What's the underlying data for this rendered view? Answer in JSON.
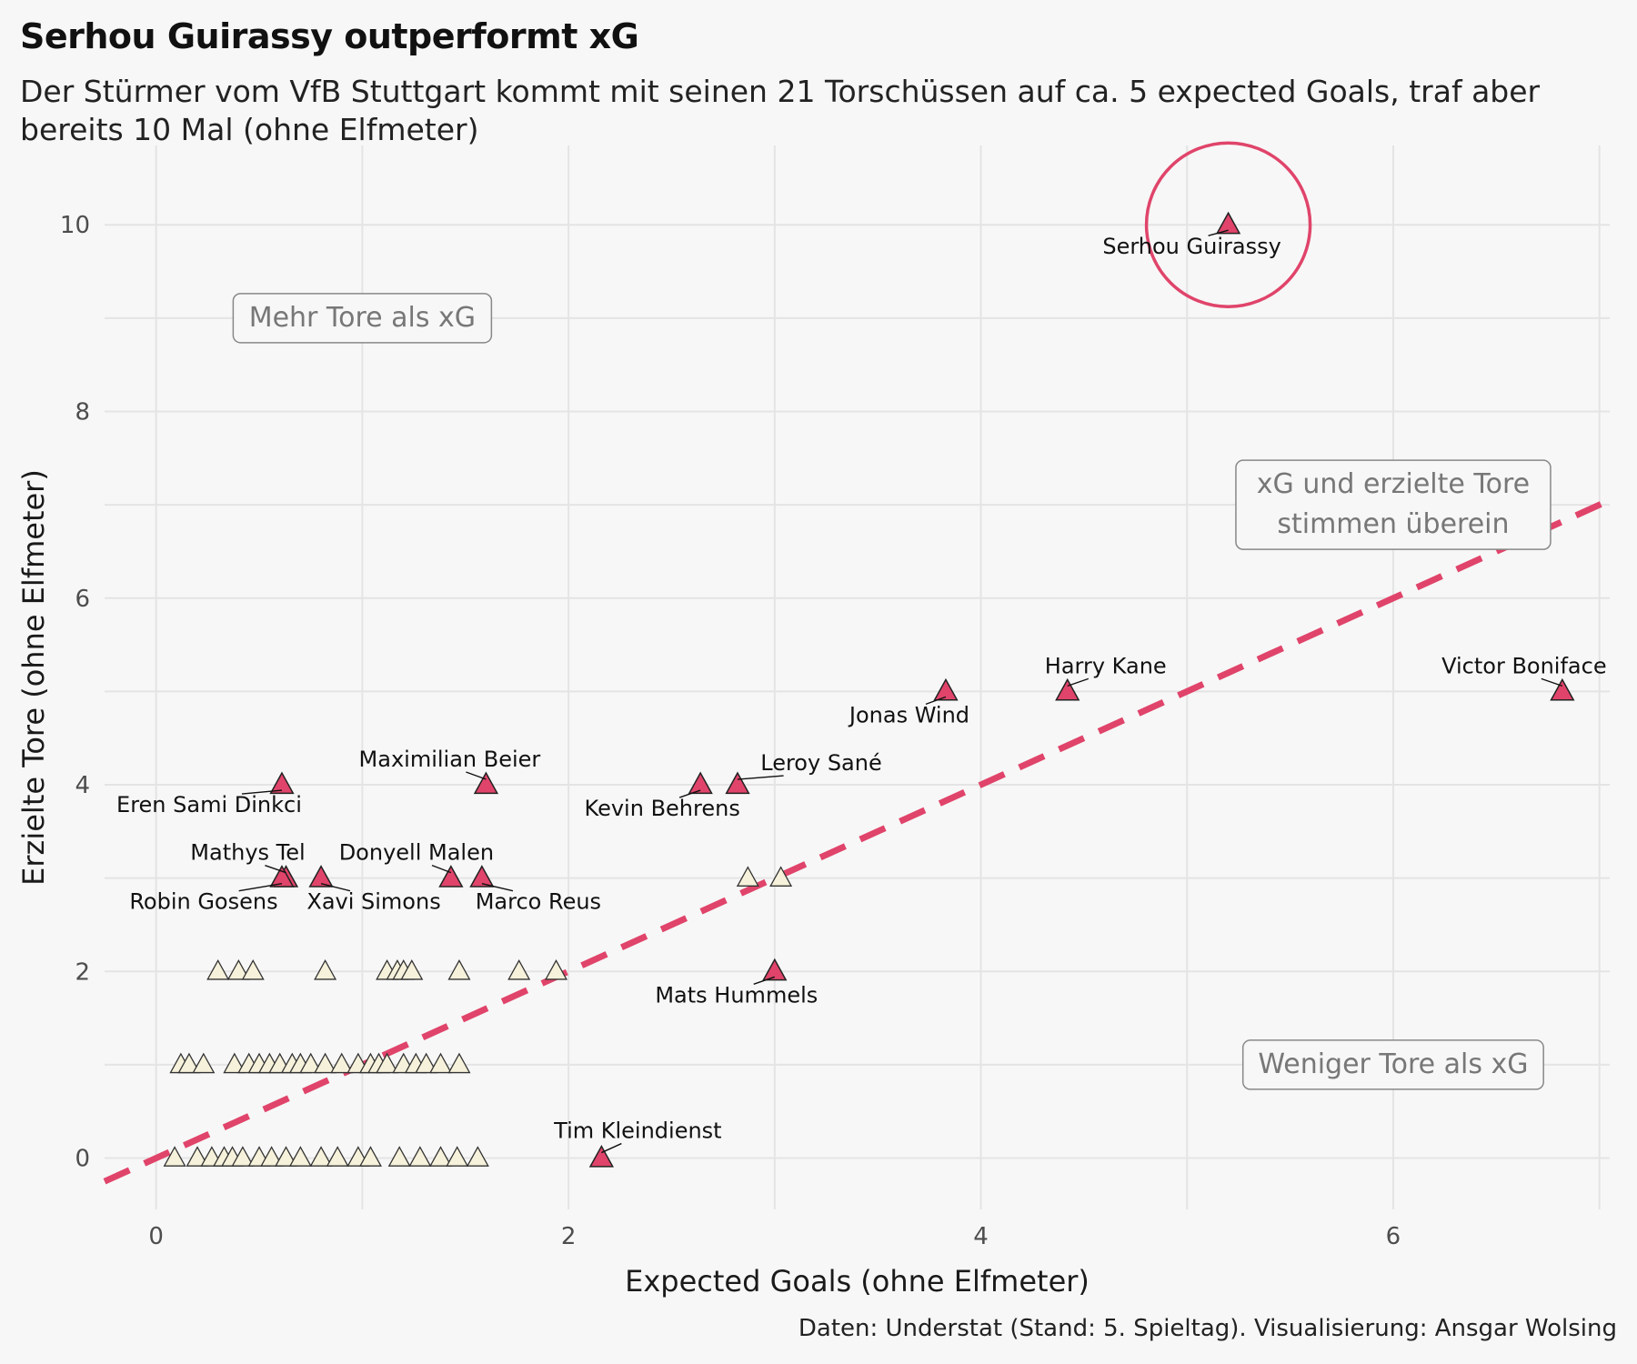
{
  "title": "Serhou Guirassy outperformt xG",
  "subtitle": "Der Stürmer vom VfB Stuttgart kommt mit seinen 21 Torschüssen auf ca. 5 expected Goals, traf aber bereits 10 Mal (ohne Elfmeter)",
  "caption": "Daten: Understat (Stand: 5. Spieltag). Visualisierung: Ansgar Wolsing",
  "colors": {
    "background": "#f7f7f7",
    "highlight": "#e0446a",
    "other": "#f6f1da",
    "grid": "#e4e4e4",
    "annotation": "#777777"
  },
  "chart_data": {
    "type": "scatter",
    "xlabel": "Expected Goals (ohne Elfmeter)",
    "ylabel": "Erzielte Tore (ohne Elfmeter)",
    "xlim": [
      -0.25,
      7.05
    ],
    "ylim": [
      -0.55,
      10.85
    ],
    "xticks": [
      0,
      2,
      4,
      6
    ],
    "yticks": [
      0,
      2,
      4,
      6,
      8,
      10
    ],
    "grid": true,
    "reference_line": {
      "slope": 1,
      "intercept": 0,
      "style": "dashed"
    },
    "annotations": [
      {
        "text": "Mehr Tore als xG",
        "x": 1.0,
        "y": 9.0
      },
      {
        "text": "xG und erzielte Tore stimmen überein",
        "x": 6.0,
        "y": 7.0
      },
      {
        "text": "Weniger Tore als xG",
        "x": 6.0,
        "y": 1.0
      }
    ],
    "highlighted": [
      {
        "name": "Serhou Guirassy",
        "x": 5.2,
        "y": 10
      },
      {
        "name": "Victor Boniface",
        "x": 6.82,
        "y": 5
      },
      {
        "name": "Harry Kane",
        "x": 4.42,
        "y": 5
      },
      {
        "name": "Jonas Wind",
        "x": 3.83,
        "y": 5
      },
      {
        "name": "Leroy Sané",
        "x": 2.82,
        "y": 4
      },
      {
        "name": "Kevin Behrens",
        "x": 2.64,
        "y": 4
      },
      {
        "name": "Maximilian Beier",
        "x": 1.6,
        "y": 4
      },
      {
        "name": "Eren Sami Dinkci",
        "x": 0.61,
        "y": 4
      },
      {
        "name": "Mathys Tel",
        "x": 0.63,
        "y": 3
      },
      {
        "name": "Robin Gosens",
        "x": 0.61,
        "y": 3
      },
      {
        "name": "Xavi Simons",
        "x": 0.8,
        "y": 3
      },
      {
        "name": "Donyell Malen",
        "x": 1.43,
        "y": 3
      },
      {
        "name": "Marco Reus",
        "x": 1.58,
        "y": 3
      },
      {
        "name": "Mats Hummels",
        "x": 3.0,
        "y": 2
      },
      {
        "name": "Tim Kleindienst",
        "x": 2.16,
        "y": 0
      }
    ],
    "others": [
      {
        "x": 2.87,
        "y": 3
      },
      {
        "x": 3.03,
        "y": 3
      },
      {
        "x": 0.3,
        "y": 2
      },
      {
        "x": 0.4,
        "y": 2
      },
      {
        "x": 0.47,
        "y": 2
      },
      {
        "x": 0.82,
        "y": 2
      },
      {
        "x": 1.12,
        "y": 2
      },
      {
        "x": 1.17,
        "y": 2
      },
      {
        "x": 1.2,
        "y": 2
      },
      {
        "x": 1.24,
        "y": 2
      },
      {
        "x": 1.47,
        "y": 2
      },
      {
        "x": 1.76,
        "y": 2
      },
      {
        "x": 1.94,
        "y": 2
      },
      {
        "x": 0.12,
        "y": 1
      },
      {
        "x": 0.16,
        "y": 1
      },
      {
        "x": 0.23,
        "y": 1
      },
      {
        "x": 0.38,
        "y": 1
      },
      {
        "x": 0.45,
        "y": 1
      },
      {
        "x": 0.5,
        "y": 1
      },
      {
        "x": 0.55,
        "y": 1
      },
      {
        "x": 0.6,
        "y": 1
      },
      {
        "x": 0.66,
        "y": 1
      },
      {
        "x": 0.7,
        "y": 1
      },
      {
        "x": 0.75,
        "y": 1
      },
      {
        "x": 0.82,
        "y": 1
      },
      {
        "x": 0.9,
        "y": 1
      },
      {
        "x": 0.98,
        "y": 1
      },
      {
        "x": 1.04,
        "y": 1
      },
      {
        "x": 1.08,
        "y": 1
      },
      {
        "x": 1.12,
        "y": 1
      },
      {
        "x": 1.2,
        "y": 1
      },
      {
        "x": 1.26,
        "y": 1
      },
      {
        "x": 1.31,
        "y": 1
      },
      {
        "x": 1.38,
        "y": 1
      },
      {
        "x": 1.47,
        "y": 1
      },
      {
        "x": 0.09,
        "y": 0
      },
      {
        "x": 0.2,
        "y": 0
      },
      {
        "x": 0.27,
        "y": 0
      },
      {
        "x": 0.33,
        "y": 0
      },
      {
        "x": 0.37,
        "y": 0
      },
      {
        "x": 0.42,
        "y": 0
      },
      {
        "x": 0.5,
        "y": 0
      },
      {
        "x": 0.56,
        "y": 0
      },
      {
        "x": 0.63,
        "y": 0
      },
      {
        "x": 0.7,
        "y": 0
      },
      {
        "x": 0.8,
        "y": 0
      },
      {
        "x": 0.88,
        "y": 0
      },
      {
        "x": 0.98,
        "y": 0
      },
      {
        "x": 1.04,
        "y": 0
      },
      {
        "x": 1.18,
        "y": 0
      },
      {
        "x": 1.28,
        "y": 0
      },
      {
        "x": 1.38,
        "y": 0
      },
      {
        "x": 1.46,
        "y": 0
      },
      {
        "x": 1.56,
        "y": 0
      }
    ]
  }
}
